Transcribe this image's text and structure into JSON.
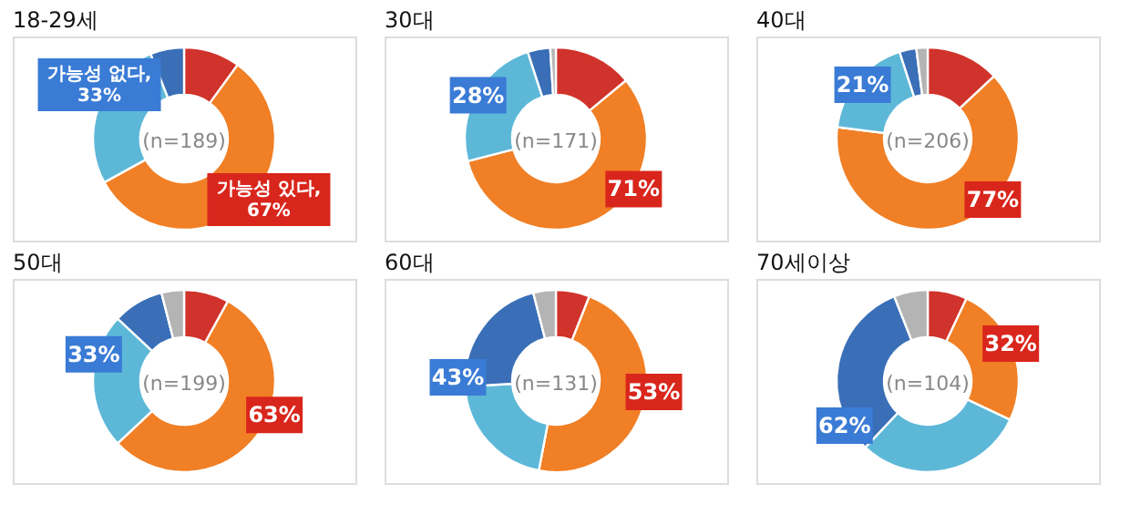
{
  "chart_data": [
    {
      "type": "donut",
      "title": "18-29세",
      "categories": [
        null,
        null,
        null,
        null
      ],
      "values": [
        10,
        57,
        27,
        6
      ],
      "colors": [
        "#d0332b",
        "#f07f25",
        "#5db8d8",
        "#3a6fb7"
      ],
      "annotations": [
        "가능성 있다, 67%",
        "가능성 없다, 33%",
        "(n=189)"
      ]
    },
    {
      "type": "donut",
      "title": "30대",
      "categories": [
        null,
        null,
        null,
        null,
        null
      ],
      "values": [
        14,
        57,
        24,
        4,
        1
      ],
      "colors": [
        "#d0332b",
        "#f07f25",
        "#5db8d8",
        "#3a6fb7",
        "#b4b4b4"
      ],
      "annotations": [
        "71%",
        "28%",
        "(n=171)"
      ]
    },
    {
      "type": "donut",
      "title": "40대",
      "categories": [
        null,
        null,
        null,
        null,
        null
      ],
      "values": [
        13,
        64,
        18,
        3,
        2
      ],
      "colors": [
        "#d0332b",
        "#f07f25",
        "#5db8d8",
        "#3a6fb7",
        "#b4b4b4"
      ],
      "annotations": [
        "77%",
        "21%",
        "(n=206)"
      ]
    },
    {
      "type": "donut",
      "title": "50대",
      "categories": [
        null,
        null,
        null,
        null,
        null
      ],
      "values": [
        8,
        55,
        24,
        9,
        4
      ],
      "colors": [
        "#d0332b",
        "#f07f25",
        "#5db8d8",
        "#3a6fb7",
        "#b4b4b4"
      ],
      "annotations": [
        "63%",
        "33%",
        "(n=199)"
      ]
    },
    {
      "type": "donut",
      "title": "60대",
      "categories": [
        null,
        null,
        null,
        null,
        null
      ],
      "values": [
        6,
        47,
        21,
        22,
        4
      ],
      "colors": [
        "#d0332b",
        "#f07f25",
        "#5db8d8",
        "#3a6fb7",
        "#b4b4b4"
      ],
      "annotations": [
        "53%",
        "43%",
        "(n=131)"
      ]
    },
    {
      "type": "donut",
      "title": "70세이상",
      "categories": [
        null,
        null,
        null,
        null,
        null
      ],
      "values": [
        7,
        25,
        30,
        32,
        6
      ],
      "colors": [
        "#d0332b",
        "#f07f25",
        "#5db8d8",
        "#3a6fb7",
        "#b4b4b4"
      ],
      "annotations": [
        "32%",
        "62%",
        "(n=104)"
      ]
    }
  ]
}
